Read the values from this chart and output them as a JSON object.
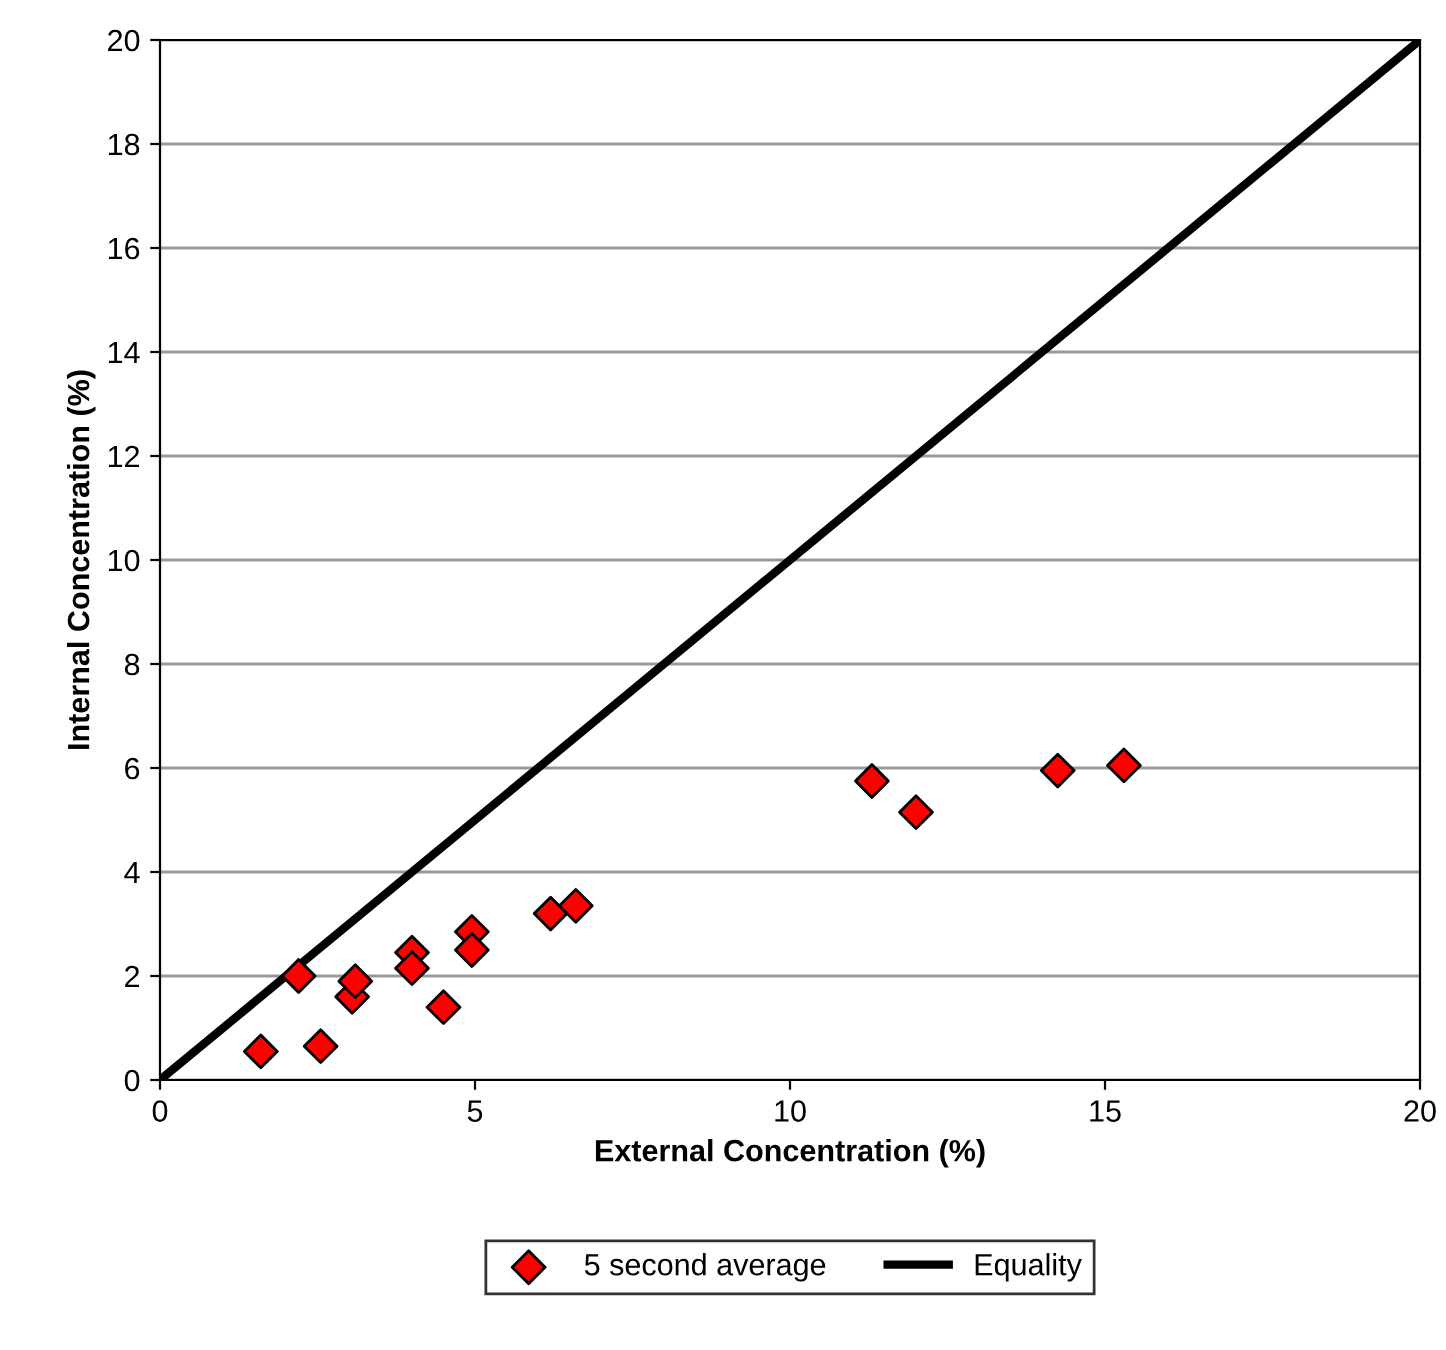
{
  "chart_data": {
    "type": "scatter",
    "xlabel": "External Concentration (%)",
    "ylabel": "Internal Concentration (%)",
    "xlim": [
      0,
      20
    ],
    "xticks": [
      0,
      5,
      10,
      15,
      20
    ],
    "ylim": [
      0,
      20
    ],
    "yticks": [
      0,
      2,
      4,
      6,
      8,
      10,
      12,
      14,
      16,
      18,
      20
    ],
    "grid": "y",
    "legend": "bottom",
    "marker": "diamond",
    "series": [
      {
        "name": "5 second average",
        "color": "#ff0000",
        "x": [
          1.6,
          2.2,
          2.55,
          3.05,
          3.1,
          4.0,
          4.0,
          4.5,
          4.95,
          4.95,
          6.2,
          6.6,
          11.3,
          12.0,
          14.25,
          15.3
        ],
        "values": [
          0.55,
          2.0,
          0.65,
          1.6,
          1.9,
          2.45,
          2.15,
          1.4,
          2.85,
          2.5,
          3.2,
          3.35,
          5.75,
          5.15,
          5.95,
          6.05
        ]
      },
      {
        "name": "Equality",
        "type": "line",
        "color": "#000000",
        "x": [
          0,
          20
        ],
        "values": [
          0,
          20
        ],
        "marker": "none",
        "line_style": "solid"
      }
    ]
  }
}
